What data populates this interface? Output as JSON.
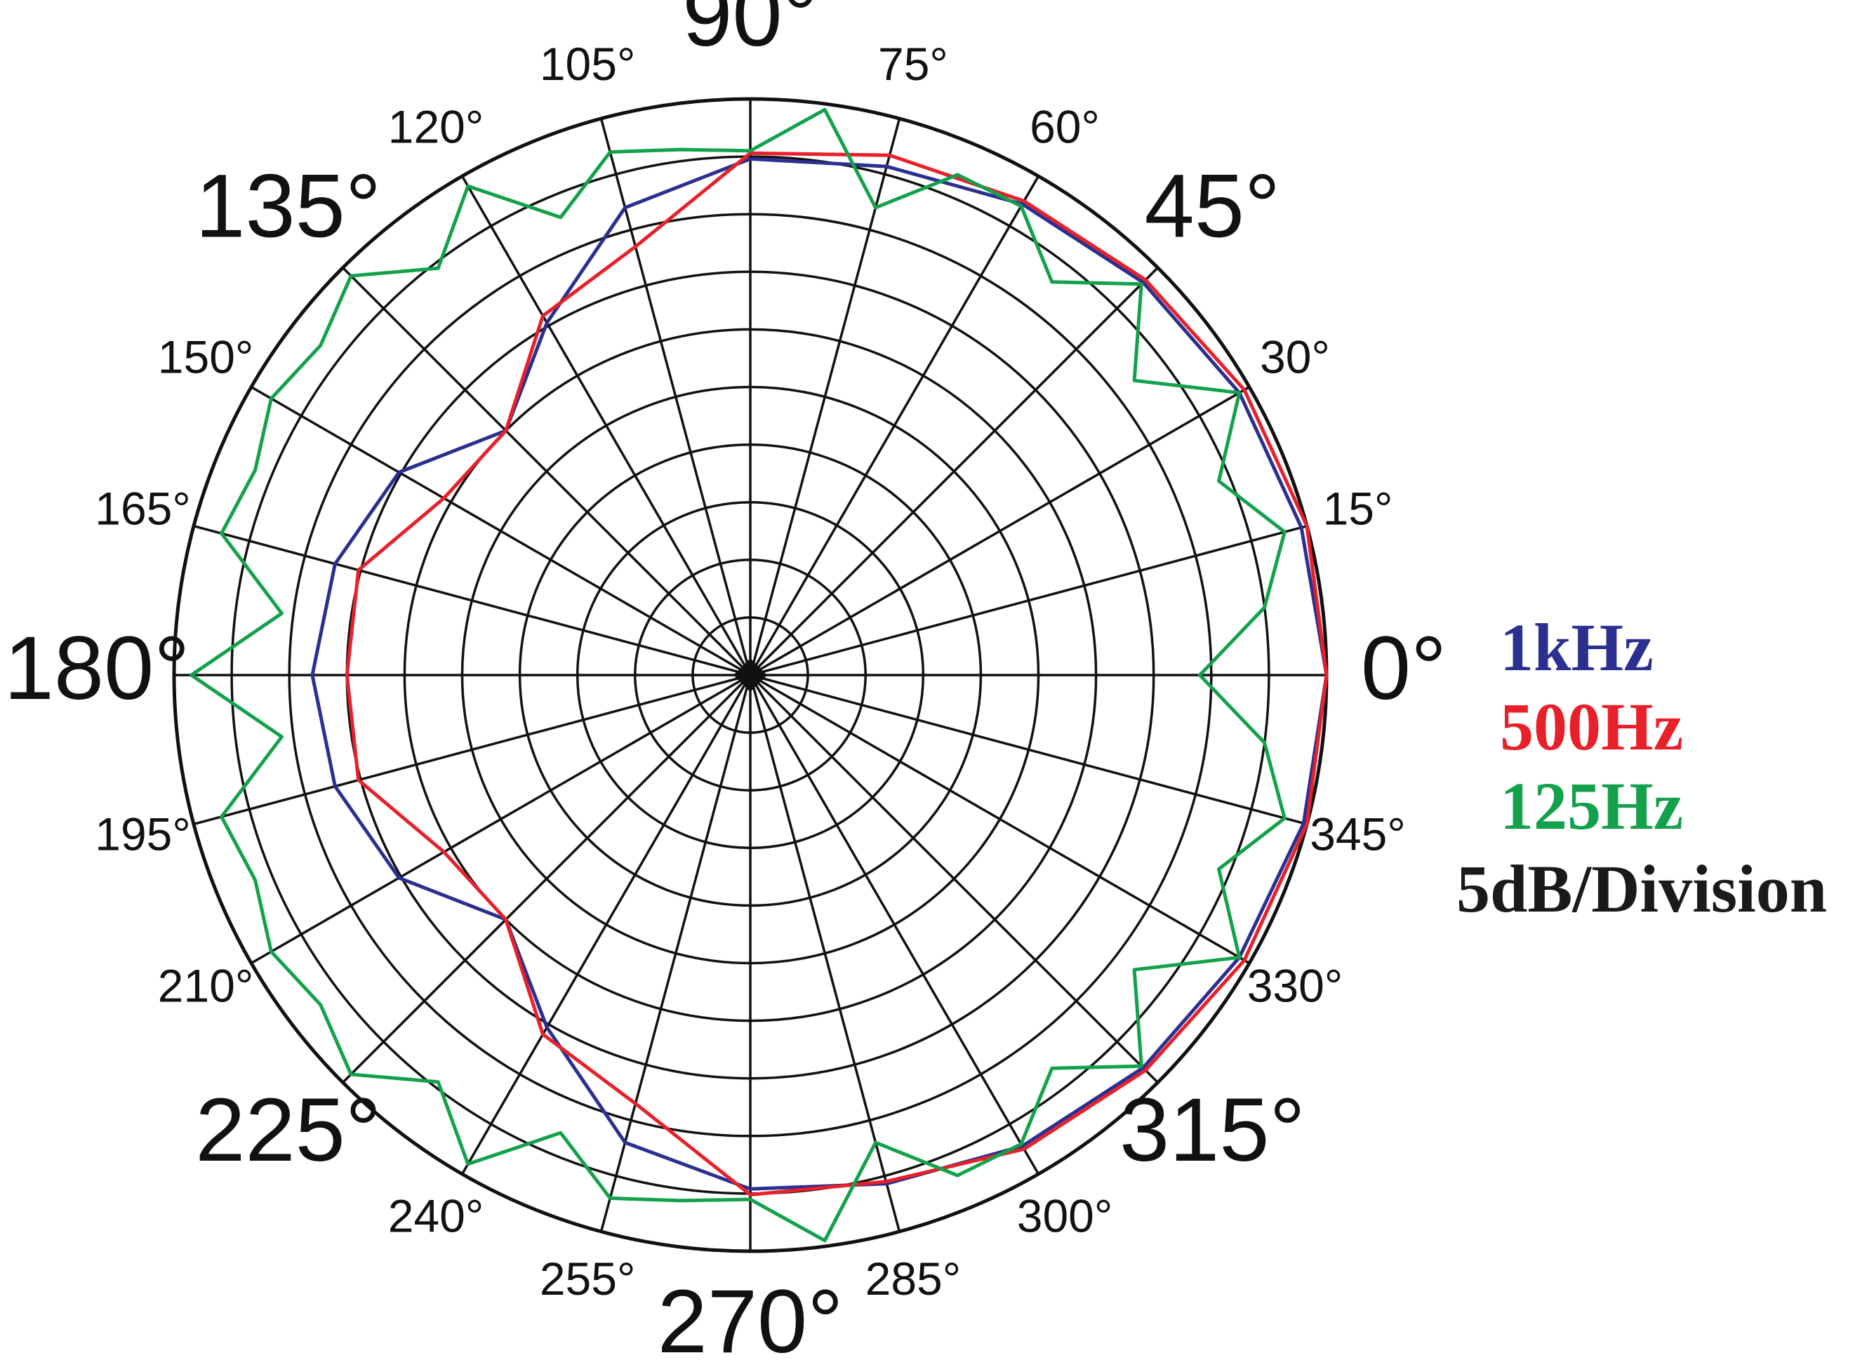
{
  "chart_data": {
    "type": "polar",
    "rlim": [
      -50,
      0
    ],
    "rticks": [
      -45,
      -40,
      -35,
      -30,
      -25,
      -20,
      -15,
      -10,
      -5,
      0
    ],
    "note": "5dB/Division",
    "thetaticks": [
      {
        "value": 0,
        "label": "0°"
      },
      {
        "value": 15,
        "label": "15°"
      },
      {
        "value": 30,
        "label": "30°"
      },
      {
        "value": 45,
        "label": "45°"
      },
      {
        "value": 60,
        "label": "60°"
      },
      {
        "value": 75,
        "label": "75°"
      },
      {
        "value": 90,
        "label": "90°"
      },
      {
        "value": 105,
        "label": "105°"
      },
      {
        "value": 120,
        "label": "120°"
      },
      {
        "value": 135,
        "label": "135°"
      },
      {
        "value": 150,
        "label": "150°"
      },
      {
        "value": 165,
        "label": "165°"
      },
      {
        "value": 180,
        "label": "180°"
      },
      {
        "value": 195,
        "label": "195°"
      },
      {
        "value": 210,
        "label": "210°"
      },
      {
        "value": 225,
        "label": "225°"
      },
      {
        "value": 240,
        "label": "240°"
      },
      {
        "value": 255,
        "label": "255°"
      },
      {
        "value": 270,
        "label": "270°"
      },
      {
        "value": 285,
        "label": "285°"
      },
      {
        "value": 300,
        "label": "300°"
      },
      {
        "value": 315,
        "label": "315°"
      },
      {
        "value": 330,
        "label": "330°"
      },
      {
        "value": 345,
        "label": "345°"
      }
    ],
    "series": [
      {
        "name": "1kHz",
        "color": "#2b2f8f",
        "theta": [
          0,
          15,
          30,
          45,
          60,
          75,
          90,
          105,
          120,
          135,
          150,
          165,
          180,
          195,
          210,
          225,
          240,
          255,
          270,
          285,
          300,
          315,
          330,
          345
        ],
        "values": [
          0,
          -0.5,
          -1,
          -1.8,
          -2.8,
          -4.3,
          -5.2,
          -8,
          -14.7,
          -20,
          -14.8,
          -12.7,
          -12,
          -12.7,
          -14.8,
          -20,
          -14.7,
          -8,
          -5.4,
          -4.3,
          -2.8,
          -1.8,
          -1,
          -0.3
        ]
      },
      {
        "name": "500Hz",
        "color": "#e8202a",
        "theta": [
          0,
          15,
          30,
          45,
          60,
          75,
          90,
          105,
          120,
          135,
          150,
          165,
          180,
          195,
          210,
          225,
          240,
          255,
          270,
          285,
          300,
          315,
          330,
          345
        ],
        "values": [
          0,
          0,
          -0.5,
          -1.5,
          -2.5,
          -3.3,
          -4.7,
          -11.5,
          -14,
          -20,
          -19.3,
          -14.8,
          -15,
          -14.8,
          -19.3,
          -20,
          -14,
          -11.5,
          -4.9,
          -4.5,
          -2.5,
          -1.5,
          -0.5,
          0
        ]
      },
      {
        "name": "125Hz",
        "color": "#13a14b",
        "theta": [
          0,
          7.5,
          15,
          22.5,
          30,
          37.5,
          45,
          52.5,
          60,
          67.5,
          75,
          82.5,
          90,
          97.5,
          105,
          112.5,
          120,
          127.5,
          135,
          142.5,
          150,
          157.5,
          165,
          172.5,
          180,
          187.5,
          195,
          202.5,
          210,
          217.5,
          225,
          232.5,
          240,
          247.5,
          255,
          262.5,
          270,
          277.5,
          285,
          292.5,
          300,
          307.5,
          315,
          322.5,
          330,
          337.5,
          345,
          352.5
        ],
        "values": [
          -11,
          -5,
          -2,
          -6,
          -1,
          -8,
          -2,
          -7,
          -3,
          -3,
          -8,
          -0.5,
          -4.5,
          -4,
          -3,
          -7,
          -1,
          -5.5,
          -1,
          -3,
          -2,
          -3.5,
          -2.5,
          -9,
          -1.5,
          -9,
          -2.5,
          -3.5,
          -2,
          -3,
          -1,
          -5.5,
          -1,
          -7,
          -3,
          -4,
          -4.5,
          -0.5,
          -8,
          -3,
          -3,
          -7,
          -2,
          -8,
          -1,
          -6,
          -2,
          -5
        ]
      }
    ]
  }
}
